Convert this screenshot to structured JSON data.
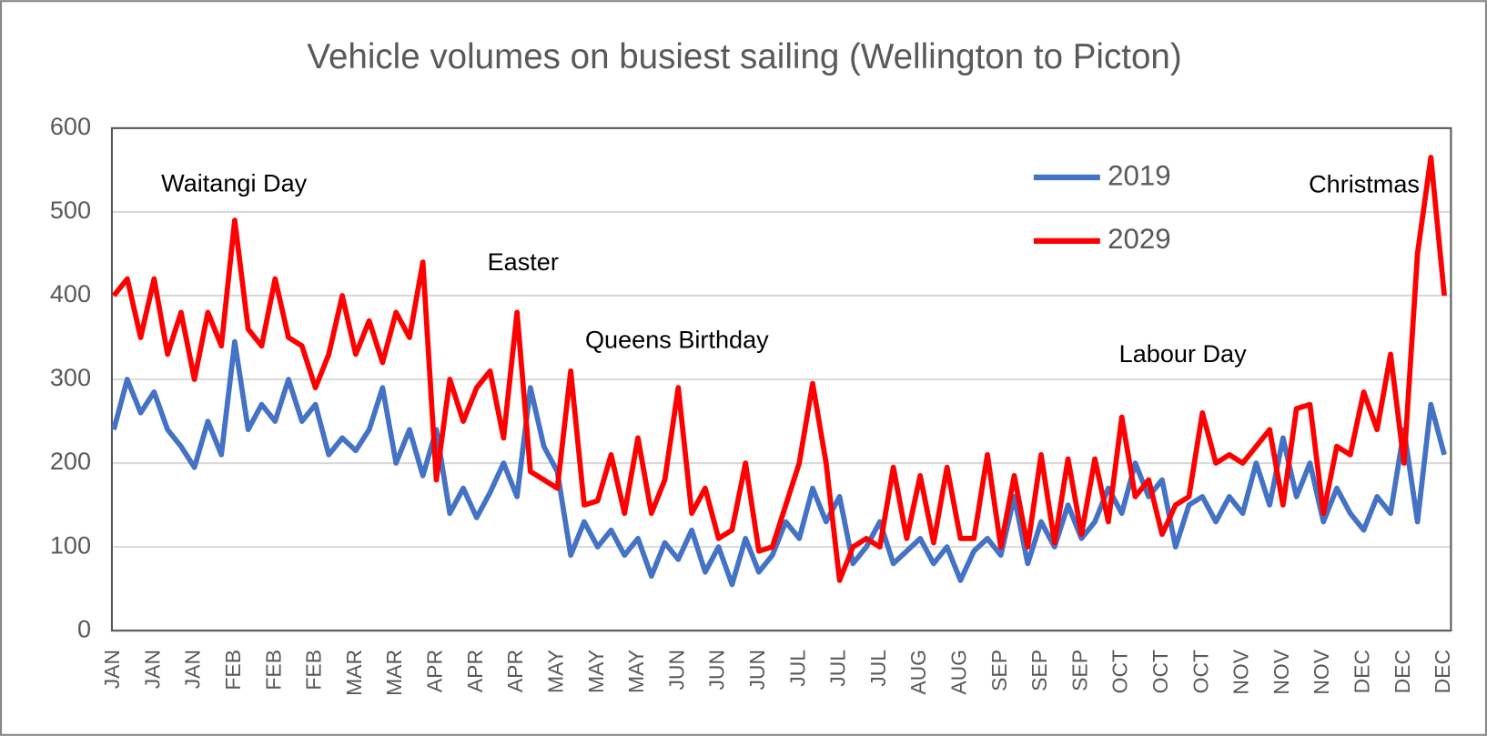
{
  "chart_data": {
    "type": "line",
    "title": "Vehicle volumes on busiest sailing (Wellington to Picton)",
    "categories": [
      "JAN",
      null,
      null,
      "JAN",
      null,
      null,
      "JAN",
      null,
      null,
      "FEB",
      null,
      null,
      "FEB",
      null,
      null,
      "FEB",
      null,
      null,
      "MAR",
      null,
      null,
      "MAR",
      null,
      null,
      "APR",
      null,
      null,
      "APR",
      null,
      null,
      "APR",
      null,
      null,
      "MAY",
      null,
      null,
      "MAY",
      null,
      null,
      "MAY",
      null,
      null,
      "JUN",
      null,
      null,
      "JUN",
      null,
      null,
      "JUN",
      null,
      null,
      "JUL",
      null,
      null,
      "JUL",
      null,
      null,
      "JUL",
      null,
      null,
      "AUG",
      null,
      null,
      "AUG",
      null,
      null,
      "SEP",
      null,
      null,
      "SEP",
      null,
      null,
      "SEP",
      null,
      null,
      "OCT",
      null,
      null,
      "OCT",
      null,
      null,
      "OCT",
      null,
      null,
      "NOV",
      null,
      null,
      "NOV",
      null,
      null,
      "NOV",
      null,
      null,
      "DEC",
      null,
      null,
      "DEC",
      null,
      null,
      "DEC"
    ],
    "series": [
      {
        "name": "2019",
        "color": "#4472c4",
        "values": [
          240,
          300,
          260,
          285,
          240,
          220,
          195,
          250,
          210,
          345,
          240,
          270,
          250,
          300,
          250,
          270,
          210,
          230,
          215,
          240,
          290,
          200,
          240,
          185,
          240,
          140,
          170,
          135,
          165,
          200,
          160,
          290,
          220,
          190,
          90,
          130,
          100,
          120,
          90,
          110,
          65,
          105,
          85,
          120,
          70,
          100,
          55,
          110,
          70,
          90,
          130,
          110,
          170,
          130,
          160,
          80,
          100,
          130,
          80,
          95,
          110,
          80,
          100,
          60,
          95,
          110,
          90,
          160,
          80,
          130,
          100,
          150,
          110,
          130,
          170,
          140,
          200,
          160,
          180,
          100,
          150,
          160,
          130,
          160,
          140,
          200,
          150,
          230,
          160,
          200,
          130,
          170,
          140,
          120,
          160,
          140,
          240,
          130,
          270,
          210
        ]
      },
      {
        "name": "2029",
        "color": "#ff0000",
        "values": [
          400,
          420,
          350,
          420,
          330,
          380,
          300,
          380,
          340,
          490,
          360,
          340,
          420,
          350,
          340,
          290,
          330,
          400,
          330,
          370,
          320,
          380,
          350,
          440,
          180,
          300,
          250,
          290,
          310,
          230,
          380,
          190,
          180,
          170,
          310,
          150,
          155,
          210,
          140,
          230,
          140,
          180,
          290,
          140,
          170,
          110,
          120,
          200,
          95,
          100,
          150,
          200,
          295,
          200,
          60,
          100,
          110,
          100,
          195,
          110,
          185,
          105,
          195,
          110,
          110,
          210,
          100,
          185,
          100,
          210,
          105,
          205,
          115,
          205,
          130,
          255,
          160,
          180,
          115,
          150,
          160,
          260,
          200,
          210,
          200,
          220,
          240,
          150,
          265,
          270,
          140,
          220,
          210,
          285,
          240,
          330,
          200,
          450,
          565,
          400
        ]
      }
    ],
    "ylim": [
      0,
      600
    ],
    "yticks": [
      0,
      100,
      200,
      300,
      400,
      500,
      600
    ],
    "grid": true,
    "legend": "upper right",
    "annotations": [
      "Waitangi Day",
      "Easter",
      "Queens Birthday",
      "Labour Day",
      "Christmas"
    ]
  }
}
